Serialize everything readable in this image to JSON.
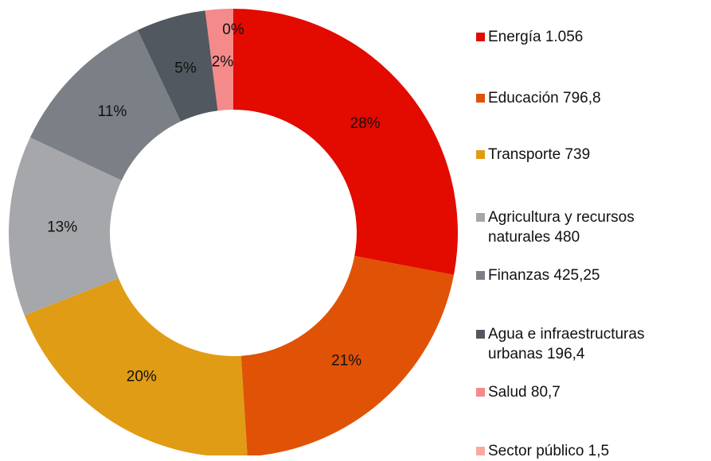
{
  "chart_data": {
    "type": "donut",
    "categories": [
      "Energía 1.056",
      "Educación 796,8",
      "Transporte 739",
      "Agricultura y recursos naturales 480",
      "Finanzas 425,25",
      "Agua e infraestructuras urbanas 196,4",
      "Salud 80,7",
      "Sector público 1,5"
    ],
    "values": [
      28,
      21,
      20,
      13,
      11,
      5,
      2,
      0
    ],
    "value_labels": [
      "28%",
      "21%",
      "20%",
      "13%",
      "11%",
      "5%",
      "2%",
      "0%"
    ],
    "colors": [
      "#e30a00",
      "#e05206",
      "#e09c14",
      "#a5a7aa",
      "#7b8087",
      "#525860",
      "#f58a8a",
      "#f9a9a0"
    ],
    "legend": "right"
  }
}
